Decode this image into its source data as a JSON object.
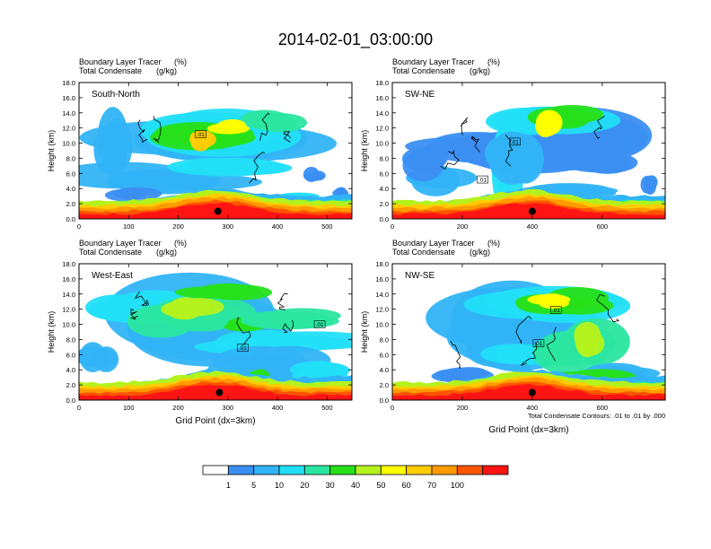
{
  "title": "2014-02-01_03:00:00",
  "chart_data": {
    "type": "heatmap",
    "title": "2014-02-01_03:00:00",
    "panels": [
      {
        "label": "South-North",
        "left_string_1": "Boundary Layer Tracer",
        "left_string_2": "Total Condensate",
        "unit_1": "(%)",
        "unit_2": "(g/kg)",
        "xlabel": "",
        "ylabel": "Height (km)",
        "xlim": [
          0,
          550
        ],
        "ylim": [
          0,
          18
        ],
        "xticks": [
          0,
          100,
          200,
          300,
          400,
          500
        ],
        "yticks": [
          0.0,
          2.0,
          4.0,
          6.0,
          8.0,
          10.0,
          12.0,
          14.0,
          16.0,
          18.0
        ],
        "contour_labels": [
          {
            "text": ".01",
            "x": 245,
            "z": 11.2
          }
        ],
        "marker": {
          "x": 280,
          "z": 1.0
        }
      },
      {
        "label": "SW-NE",
        "left_string_1": "Boundary Layer Tracer",
        "left_string_2": "Total Condensate",
        "unit_1": "(%)",
        "unit_2": "(g/kg)",
        "xlabel": "",
        "ylabel": "Height (km)",
        "xlim": [
          0,
          780
        ],
        "ylim": [
          0,
          18
        ],
        "xticks": [
          0,
          200,
          400,
          600
        ],
        "yticks": [
          0.0,
          2.0,
          4.0,
          6.0,
          8.0,
          10.0,
          12.0,
          14.0,
          16.0,
          18.0
        ],
        "contour_labels": [
          {
            "text": ".01",
            "x": 350,
            "z": 10.2
          },
          {
            "text": ".01",
            "x": 258,
            "z": 5.2
          }
        ],
        "marker": {
          "x": 400,
          "z": 1.0
        }
      },
      {
        "label": "West-East",
        "left_string_1": "Boundary Layer Tracer",
        "left_string_2": "Total Condensate",
        "unit_1": "(%)",
        "unit_2": "(g/kg)",
        "xlabel": "Grid Point (dx=3km)",
        "ylabel": "Height (km)",
        "xlim": [
          0,
          550
        ],
        "ylim": [
          0,
          18
        ],
        "xticks": [
          0,
          100,
          200,
          300,
          400,
          500
        ],
        "yticks": [
          0.0,
          2.0,
          4.0,
          6.0,
          8.0,
          10.0,
          12.0,
          14.0,
          16.0,
          18.0
        ],
        "contour_labels": [
          {
            "text": ".01",
            "x": 485,
            "z": 10.0
          },
          {
            "text": ".01",
            "x": 330,
            "z": 6.9
          }
        ],
        "marker": {
          "x": 283,
          "z": 1.0
        }
      },
      {
        "label": "NW-SE",
        "left_string_1": "Boundary Layer Tracer",
        "left_string_2": "Total Condensate",
        "unit_1": "(%)",
        "unit_2": "(g/kg)",
        "xlabel": "Grid Point (dx=3km)",
        "ylabel": "Height (km)",
        "xlim": [
          0,
          780
        ],
        "ylim": [
          0,
          18
        ],
        "xticks": [
          0,
          200,
          400,
          600
        ],
        "yticks": [
          0.0,
          2.0,
          4.0,
          6.0,
          8.0,
          10.0,
          12.0,
          14.0,
          16.0,
          18.0
        ],
        "contour_labels": [
          {
            "text": ".01",
            "x": 468,
            "z": 11.9
          },
          {
            "text": ".01",
            "x": 418,
            "z": 7.5
          }
        ],
        "marker": {
          "x": 400,
          "z": 1.0
        },
        "footnote": "Total Condensate Contours: .01 to .01 by .000"
      }
    ],
    "colorbar": {
      "labels": [
        "1",
        "5",
        "10",
        "20",
        "30",
        "40",
        "50",
        "60",
        "70",
        "100"
      ],
      "colors": [
        "#ffffff",
        "#3b8ff2",
        "#31b4f7",
        "#22dff7",
        "#2ae6a0",
        "#26e01a",
        "#b4f21e",
        "#ffff00",
        "#ffcc00",
        "#ff9a00",
        "#ff5400",
        "#ff1414"
      ]
    }
  }
}
